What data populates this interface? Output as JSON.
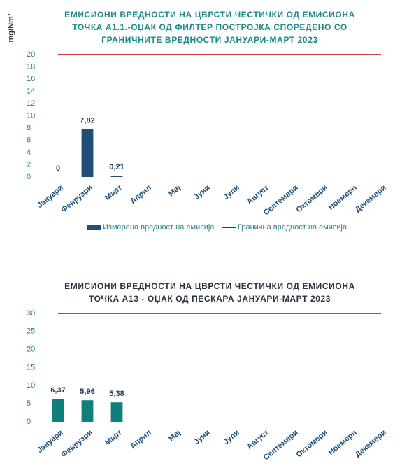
{
  "chart_data": [
    {
      "type": "bar",
      "title": [
        "ЕМИСИОНИ ВРЕДНОСТИ НА ЦВРСТИ ЧЕСТИЧКИ ОД ЕМИСИОНА",
        "ТОЧКА А1.1.-ОЏАК ОД ФИЛТЕР ПОСТРОЈКА СПОРЕДЕНО СО",
        "ГРАНИЧНИТЕ ВРЕДНОСТИ ЈАНУАРИ-МАРТ 2023"
      ],
      "y_label": "mg/Nm³",
      "categories": [
        "Јануари",
        "Февруари",
        "Март",
        "Април",
        "Мај",
        "Јуни",
        "Јули",
        "Август",
        "Септември",
        "Октомври",
        "Ноември",
        "Декември"
      ],
      "series": [
        {
          "name": "Измерена вредност на емисија",
          "type": "bar",
          "color": "#1f4e79",
          "values": [
            0,
            7.82,
            0.21,
            null,
            null,
            null,
            null,
            null,
            null,
            null,
            null,
            null
          ],
          "value_labels": [
            "0",
            "7,82",
            "0,21",
            null,
            null,
            null,
            null,
            null,
            null,
            null,
            null,
            null
          ]
        },
        {
          "name": "Гранична вредност на емисија",
          "type": "line",
          "color": "#c00000",
          "values": [
            20,
            20,
            20,
            20,
            20,
            20,
            20,
            20,
            20,
            20,
            20,
            20
          ]
        }
      ],
      "ylim": [
        0,
        20
      ],
      "yticks": [
        0,
        2,
        4,
        6,
        8,
        10,
        12,
        14,
        16,
        18,
        20
      ],
      "grid": false,
      "legend": "bottom"
    },
    {
      "type": "bar",
      "title": [
        "ЕМИСИОНИ ВРЕДНОСТИ НА ЦВРСТИ ЧЕСТИЧКИ ОД ЕМИСИОНА",
        "ТОЧКА А13 - ОЏАК ОД ПЕСКАРА ЈАНУАРИ-МАРТ 2023"
      ],
      "categories": [
        "Јануари",
        "Февруари",
        "Март",
        "Април",
        "Мај",
        "Јуни",
        "Јули",
        "Август",
        "Септември",
        "Октомври",
        "Ноември",
        "Декември"
      ],
      "series": [
        {
          "type": "bar",
          "color": "#0e8079",
          "values": [
            6.37,
            5.96,
            5.38,
            null,
            null,
            null,
            null,
            null,
            null,
            null,
            null,
            null
          ],
          "value_labels": [
            "6,37",
            "5,96",
            "5,38",
            null,
            null,
            null,
            null,
            null,
            null,
            null,
            null,
            null
          ]
        },
        {
          "type": "line",
          "color": "#c00000",
          "values": [
            30,
            30,
            30,
            30,
            30,
            30,
            30,
            30,
            30,
            30,
            30,
            30
          ]
        }
      ],
      "ylim": [
        0,
        30
      ],
      "yticks": [
        0,
        5,
        10,
        15,
        20,
        25,
        30
      ],
      "grid": false
    }
  ]
}
